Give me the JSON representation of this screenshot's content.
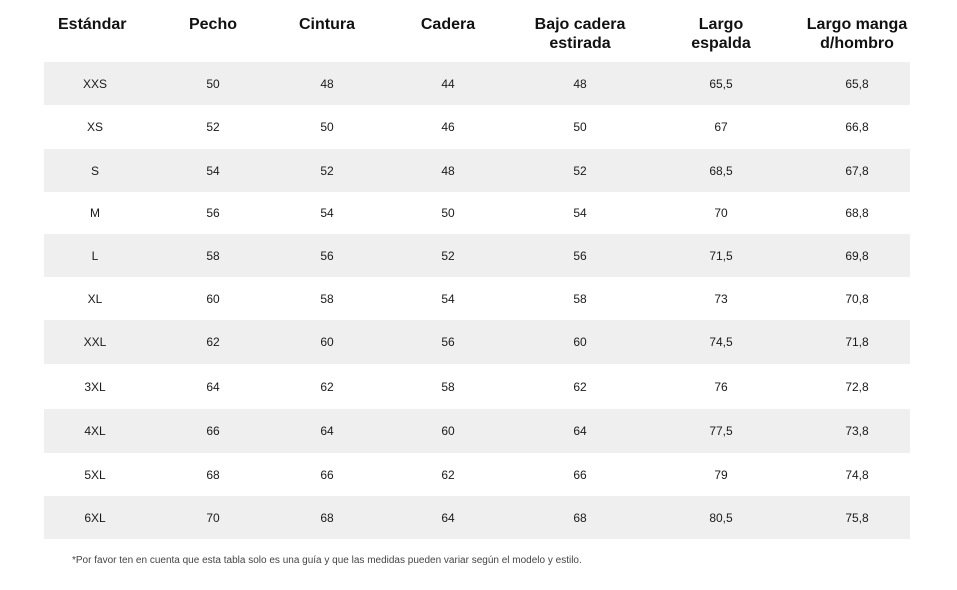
{
  "headers": [
    [
      "Estándar"
    ],
    [
      "Pecho"
    ],
    [
      "Cintura"
    ],
    [
      "Cadera"
    ],
    [
      "Bajo cadera",
      "estirada"
    ],
    [
      "Largo",
      "espalda"
    ],
    [
      "Largo manga",
      "d/hombro"
    ]
  ],
  "rows": [
    [
      "XXS",
      "50",
      "48",
      "44",
      "48",
      "65,5",
      "65,8"
    ],
    [
      "XS",
      "52",
      "50",
      "46",
      "50",
      "67",
      "66,8"
    ],
    [
      "S",
      "54",
      "52",
      "48",
      "52",
      "68,5",
      "67,8"
    ],
    [
      "M",
      "56",
      "54",
      "50",
      "54",
      "70",
      "68,8"
    ],
    [
      "L",
      "58",
      "56",
      "52",
      "56",
      "71,5",
      "69,8"
    ],
    [
      "XL",
      "60",
      "58",
      "54",
      "58",
      "73",
      "70,8"
    ],
    [
      "XXL",
      "62",
      "60",
      "56",
      "60",
      "74,5",
      "71,8"
    ],
    [
      "3XL",
      "64",
      "62",
      "58",
      "62",
      "76",
      "72,8"
    ],
    [
      "4XL",
      "66",
      "64",
      "60",
      "64",
      "77,5",
      "73,8"
    ],
    [
      "5XL",
      "68",
      "66",
      "62",
      "66",
      "79",
      "74,8"
    ],
    [
      "6XL",
      "70",
      "68",
      "64",
      "68",
      "80,5",
      "75,8"
    ]
  ],
  "note": "*Por favor ten en cuenta que esta tabla solo es una guía y que las medidas pueden variar según el modelo y estilo.",
  "colors": {
    "stripe": "#efefef",
    "text": "#111111"
  }
}
